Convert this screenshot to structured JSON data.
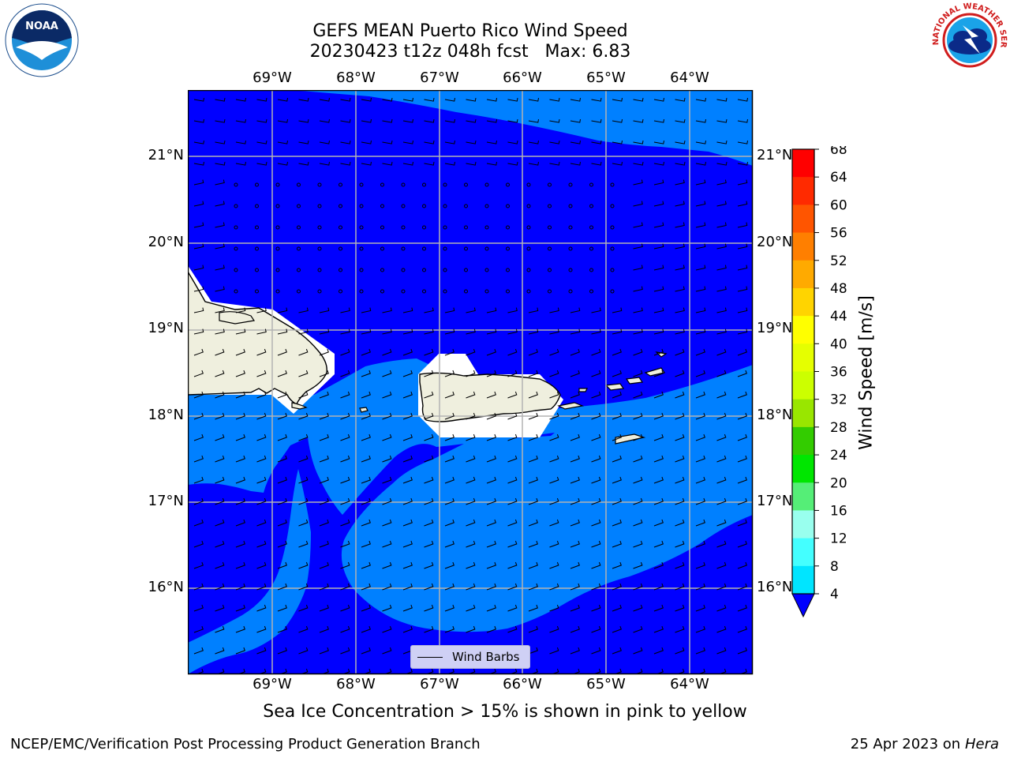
{
  "title": {
    "line1": "GEFS MEAN Puerto Rico Wind Speed",
    "line2": "20230423 t12z 048h fcst   Max: 6.83"
  },
  "map": {
    "lon_labels": [
      "69°W",
      "68°W",
      "67°W",
      "66°W",
      "65°W",
      "64°W"
    ],
    "lat_labels": [
      "21°N",
      "20°N",
      "19°N",
      "18°N",
      "17°N",
      "16°N"
    ],
    "colors": {
      "ocean_dark": "#0000ff",
      "ocean_light": "#0080ff",
      "land": "#efefde",
      "masked": "#ffffff",
      "grid": "#b3b3b3"
    },
    "legend_label": "Wind Barbs"
  },
  "colorbar": {
    "label": "Wind Speed [m/s]",
    "ticks": [
      "68",
      "64",
      "60",
      "56",
      "52",
      "48",
      "44",
      "40",
      "36",
      "32",
      "28",
      "24",
      "20",
      "16",
      "12",
      "8",
      "4"
    ],
    "colors": [
      "#ff0000",
      "#ff2a00",
      "#ff5500",
      "#ff7f00",
      "#ffaa00",
      "#ffd400",
      "#ffff00",
      "#e5ff00",
      "#ccff00",
      "#99e600",
      "#33cc00",
      "#00e600",
      "#55ee77",
      "#99ffee",
      "#44ffff",
      "#00e5ff",
      "#0080ff",
      "#0000ff"
    ]
  },
  "note": "Sea Ice Concentration > 15% is shown in pink to yellow",
  "footer": {
    "left": "NCEP/EMC/Verification Post Processing Product Generation Branch",
    "right_date": "25 Apr 2023 on ",
    "right_machine": "Hera"
  },
  "logos": {
    "noaa_text": "NOAA",
    "nws_text": "NATIONAL WEATHER SERVICE"
  }
}
